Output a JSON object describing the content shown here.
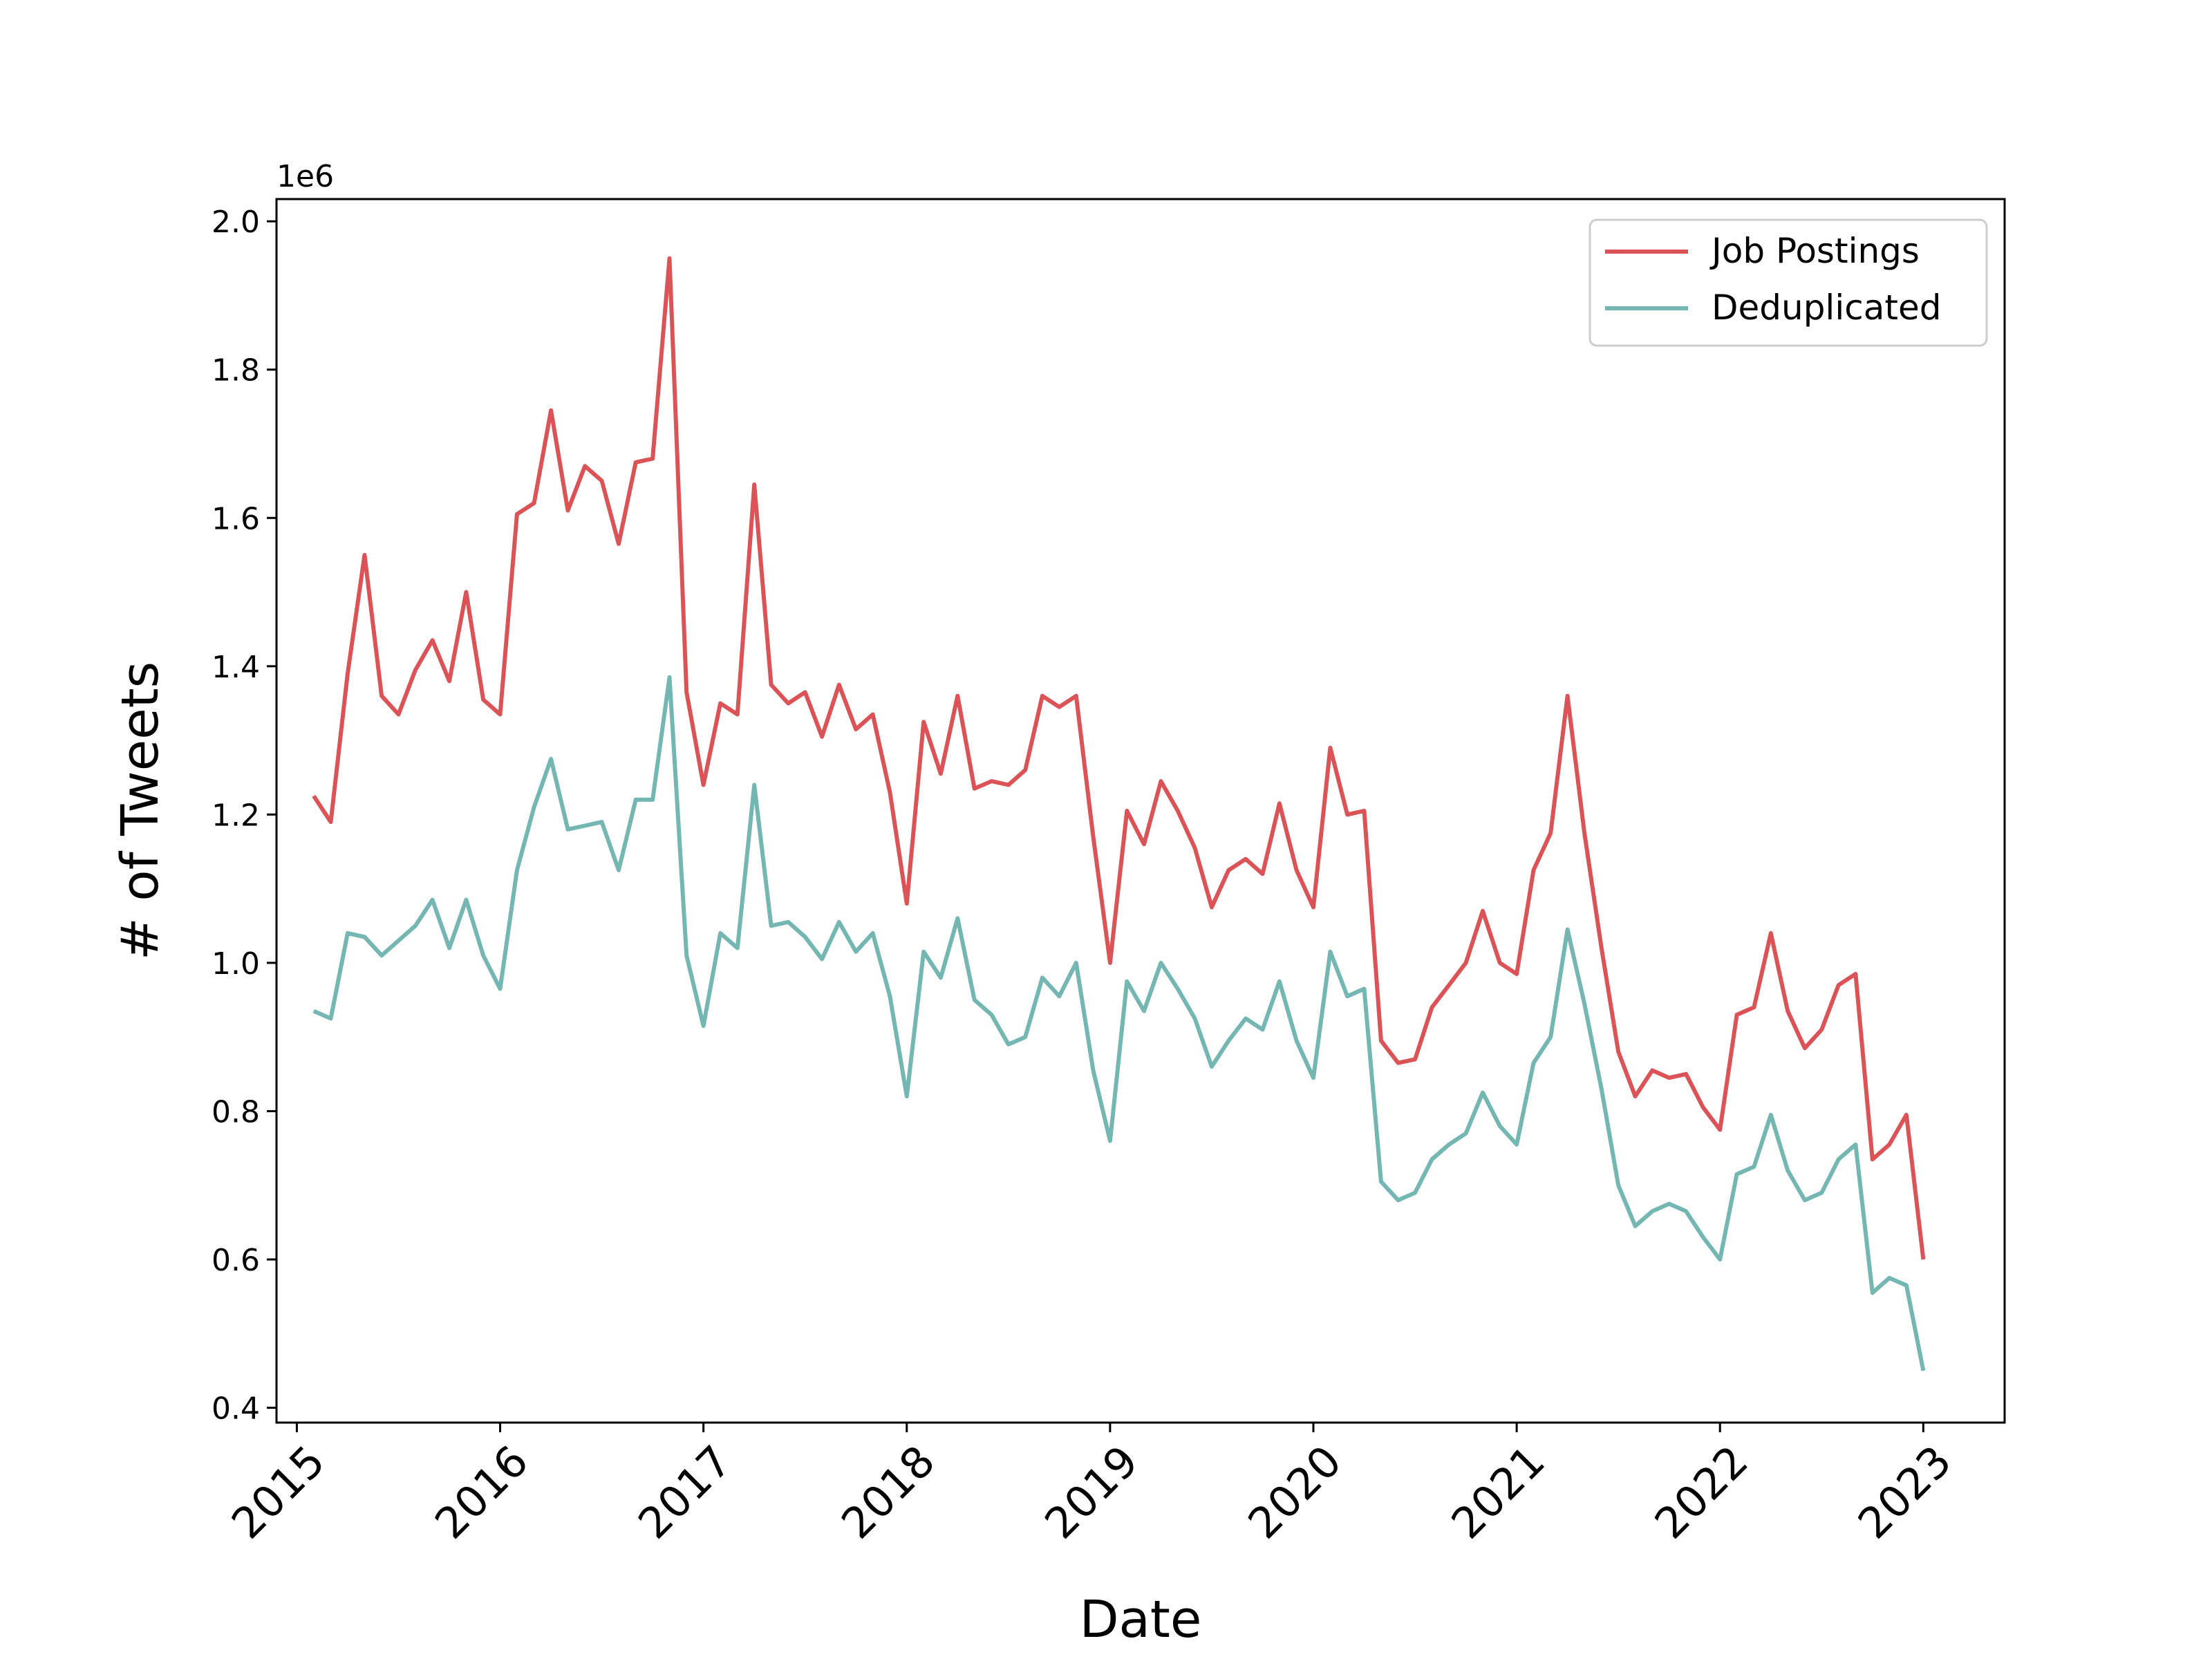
{
  "chart_data": {
    "type": "line",
    "title": "",
    "xlabel": "Date",
    "ylabel": "# of Tweets",
    "y_offset_text": "1e6",
    "y_scale_factor": 1000000,
    "xlim": [
      2014.9,
      2023.4
    ],
    "ylim": [
      0.38,
      2.03
    ],
    "yticks": [
      0.4,
      0.6,
      0.8,
      1.0,
      1.2,
      1.4,
      1.6,
      1.8,
      2.0
    ],
    "ytick_labels": [
      "0.4",
      "0.6",
      "0.8",
      "1.0",
      "1.2",
      "1.4",
      "1.6",
      "1.8",
      "2.0"
    ],
    "xticks": [
      2015,
      2016,
      2017,
      2018,
      2019,
      2020,
      2021,
      2022,
      2023
    ],
    "xtick_labels": [
      "2015",
      "2016",
      "2017",
      "2018",
      "2019",
      "2020",
      "2021",
      "2022",
      "2023"
    ],
    "grid": false,
    "legend_position": "top-right",
    "x": [
      2015.083,
      2015.167,
      2015.25,
      2015.333,
      2015.417,
      2015.5,
      2015.583,
      2015.667,
      2015.75,
      2015.833,
      2015.917,
      2016.0,
      2016.083,
      2016.167,
      2016.25,
      2016.333,
      2016.417,
      2016.5,
      2016.583,
      2016.667,
      2016.75,
      2016.833,
      2016.917,
      2017.0,
      2017.083,
      2017.167,
      2017.25,
      2017.333,
      2017.417,
      2017.5,
      2017.583,
      2017.667,
      2017.75,
      2017.833,
      2017.917,
      2018.0,
      2018.083,
      2018.167,
      2018.25,
      2018.333,
      2018.417,
      2018.5,
      2018.583,
      2018.667,
      2018.75,
      2018.833,
      2018.917,
      2019.0,
      2019.083,
      2019.167,
      2019.25,
      2019.333,
      2019.417,
      2019.5,
      2019.583,
      2019.667,
      2019.75,
      2019.833,
      2019.917,
      2020.0,
      2020.083,
      2020.167,
      2020.25,
      2020.333,
      2020.417,
      2020.5,
      2020.583,
      2020.667,
      2020.75,
      2020.833,
      2020.917,
      2021.0,
      2021.083,
      2021.167,
      2021.25,
      2021.333,
      2021.417,
      2021.5,
      2021.583,
      2021.667,
      2021.75,
      2021.833,
      2021.917,
      2022.0,
      2022.083,
      2022.167,
      2022.25,
      2022.333,
      2022.417,
      2022.5,
      2022.583,
      2022.667,
      2022.75,
      2022.833,
      2022.917,
      2023.0
    ],
    "series": [
      {
        "name": "Job Postings",
        "color": "#dc5357",
        "values": [
          1.225,
          1.19,
          1.39,
          1.55,
          1.36,
          1.335,
          1.395,
          1.435,
          1.38,
          1.5,
          1.355,
          1.335,
          1.605,
          1.62,
          1.745,
          1.61,
          1.67,
          1.65,
          1.565,
          1.675,
          1.68,
          1.95,
          1.365,
          1.24,
          1.35,
          1.335,
          1.645,
          1.375,
          1.35,
          1.365,
          1.305,
          1.375,
          1.315,
          1.335,
          1.23,
          1.08,
          1.325,
          1.255,
          1.36,
          1.235,
          1.245,
          1.24,
          1.26,
          1.36,
          1.345,
          1.36,
          1.17,
          1.0,
          1.205,
          1.16,
          1.245,
          1.205,
          1.155,
          1.075,
          1.125,
          1.14,
          1.12,
          1.215,
          1.125,
          1.075,
          1.29,
          1.2,
          1.205,
          0.895,
          0.865,
          0.87,
          0.94,
          0.97,
          1.0,
          1.07,
          1.0,
          0.985,
          1.125,
          1.175,
          1.36,
          1.175,
          1.02,
          0.88,
          0.82,
          0.855,
          0.845,
          0.85,
          0.805,
          0.775,
          0.93,
          0.94,
          1.04,
          0.935,
          0.885,
          0.91,
          0.97,
          0.985,
          0.735,
          0.755,
          0.795,
          0.6
        ]
      },
      {
        "name": "Deduplicated",
        "color": "#73b6b2",
        "values": [
          0.935,
          0.925,
          1.04,
          1.035,
          1.01,
          1.03,
          1.05,
          1.085,
          1.02,
          1.085,
          1.01,
          0.965,
          1.125,
          1.21,
          1.275,
          1.18,
          1.185,
          1.19,
          1.125,
          1.22,
          1.22,
          1.385,
          1.01,
          0.915,
          1.04,
          1.02,
          1.24,
          1.05,
          1.055,
          1.035,
          1.005,
          1.055,
          1.015,
          1.04,
          0.955,
          0.82,
          1.015,
          0.98,
          1.06,
          0.95,
          0.93,
          0.89,
          0.9,
          0.98,
          0.955,
          1.0,
          0.855,
          0.76,
          0.975,
          0.935,
          1.0,
          0.965,
          0.925,
          0.86,
          0.895,
          0.925,
          0.91,
          0.975,
          0.895,
          0.845,
          1.015,
          0.955,
          0.965,
          0.705,
          0.68,
          0.69,
          0.735,
          0.755,
          0.77,
          0.825,
          0.78,
          0.755,
          0.865,
          0.9,
          1.045,
          0.945,
          0.83,
          0.7,
          0.645,
          0.665,
          0.675,
          0.665,
          0.63,
          0.6,
          0.715,
          0.725,
          0.795,
          0.72,
          0.68,
          0.69,
          0.735,
          0.755,
          0.555,
          0.575,
          0.565,
          0.45
        ]
      }
    ]
  }
}
